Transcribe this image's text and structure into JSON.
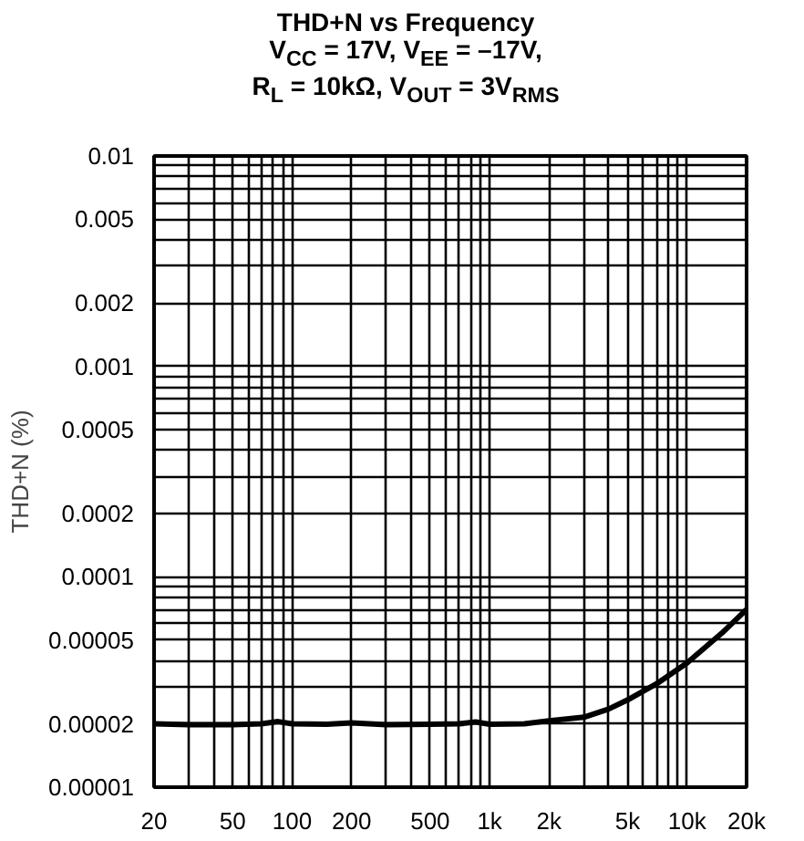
{
  "chart_data": {
    "type": "line",
    "title": [
      "THD+N vs Frequency",
      "V$_{CC}$ = 17V, V$_{EE}$ = –17V,",
      "R$_{L}$ = 10kΩ, V$_{OUT}$ = 3V$_{RMS}$"
    ],
    "ylabel": "THD+N (%)",
    "log": "xy",
    "grid": true,
    "marker": "none",
    "line_style": "solid",
    "xlim": [
      20,
      20000
    ],
    "ylim": [
      1e-05,
      0.01
    ],
    "xticks": [
      20,
      {
        "value": 30,
        "label": null
      },
      {
        "value": 40,
        "label": null
      },
      50,
      {
        "value": 60,
        "label": null
      },
      {
        "value": 70,
        "label": null
      },
      {
        "value": 80,
        "label": null
      },
      {
        "value": 90,
        "label": null
      },
      100,
      200,
      {
        "value": 300,
        "label": null
      },
      {
        "value": 400,
        "label": null
      },
      500,
      {
        "value": 600,
        "label": null
      },
      {
        "value": 700,
        "label": null
      },
      {
        "value": 800,
        "label": null
      },
      {
        "value": 900,
        "label": null
      },
      {
        "value": 1000,
        "label": "1k"
      },
      {
        "value": 2000,
        "label": "2k"
      },
      {
        "value": 3000,
        "label": null
      },
      {
        "value": 4000,
        "label": null
      },
      {
        "value": 5000,
        "label": "5k"
      },
      {
        "value": 6000,
        "label": null
      },
      {
        "value": 7000,
        "label": null
      },
      {
        "value": 8000,
        "label": null
      },
      {
        "value": 9000,
        "label": null
      },
      {
        "value": 10000,
        "label": "10k"
      },
      {
        "value": 20000,
        "label": "20k"
      }
    ],
    "yticks": [
      {
        "value": 1e-05,
        "label": "0.00001"
      },
      {
        "value": 2e-05,
        "label": "0.00002"
      },
      {
        "value": 3e-05,
        "label": null
      },
      {
        "value": 4e-05,
        "label": null
      },
      {
        "value": 5e-05,
        "label": "0.00005"
      },
      {
        "value": 6e-05,
        "label": null
      },
      {
        "value": 7e-05,
        "label": null
      },
      {
        "value": 8e-05,
        "label": null
      },
      {
        "value": 9e-05,
        "label": null
      },
      0.0001,
      0.0002,
      {
        "value": 0.0003,
        "label": null
      },
      {
        "value": 0.0004,
        "label": null
      },
      0.0005,
      {
        "value": 0.0006,
        "label": null
      },
      {
        "value": 0.0007,
        "label": null
      },
      {
        "value": 0.0008,
        "label": null
      },
      {
        "value": 0.0009,
        "label": null
      },
      0.001,
      0.002,
      {
        "value": 0.003,
        "label": null
      },
      {
        "value": 0.004,
        "label": null
      },
      0.005,
      {
        "value": 0.006,
        "label": null
      },
      {
        "value": 0.007,
        "label": null
      },
      {
        "value": 0.008,
        "label": null
      },
      {
        "value": 0.009,
        "label": null
      },
      0.01
    ],
    "x": [
      20,
      30,
      50,
      70,
      85,
      100,
      150,
      200,
      300,
      500,
      700,
      850,
      1000,
      1500,
      2000,
      3000,
      4000,
      5000,
      7000,
      10000,
      15000,
      20000
    ],
    "series": [
      {
        "color": "#000000",
        "values": [
          2e-05,
          1.98e-05,
          1.98e-05,
          2e-05,
          2.05e-05,
          2e-05,
          1.99e-05,
          2.02e-05,
          1.98e-05,
          1.99e-05,
          2e-05,
          2.04e-05,
          1.99e-05,
          2e-05,
          2.07e-05,
          2.15e-05,
          2.35e-05,
          2.6e-05,
          3.1e-05,
          3.9e-05,
          5.4e-05,
          7e-05
        ]
      }
    ]
  }
}
